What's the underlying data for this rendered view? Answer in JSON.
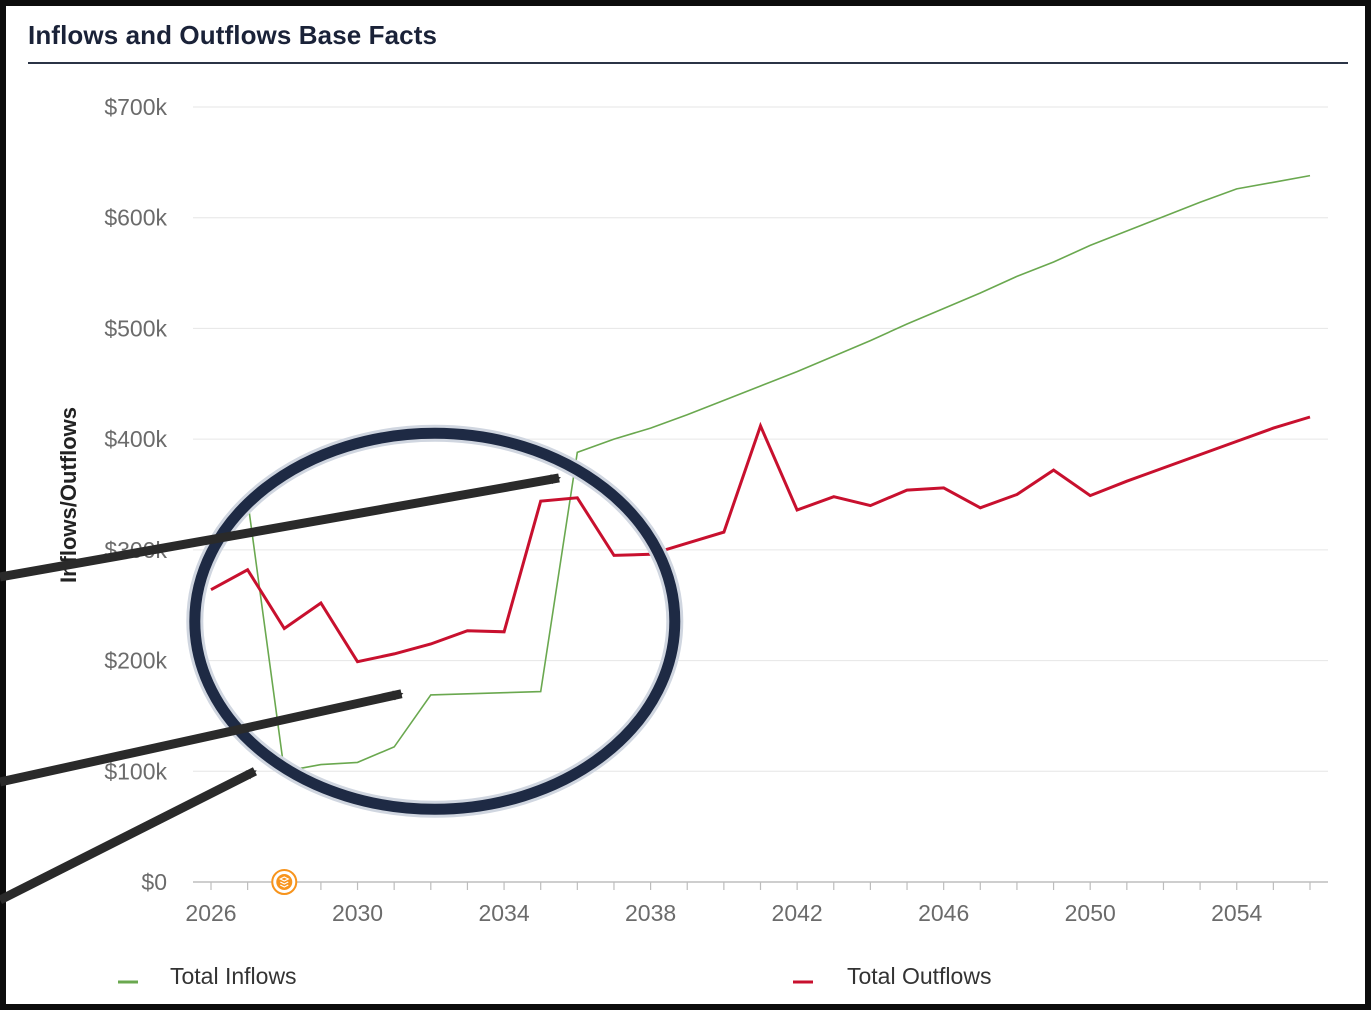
{
  "card": {
    "title": "Inflows and Outflows Base Facts"
  },
  "chart_data": {
    "type": "line",
    "ylabel": "Inflows/Outflows",
    "xlabel": "",
    "ylim": [
      0,
      700000
    ],
    "xlim": [
      2026,
      2056
    ],
    "y_ticks": [
      0,
      100000,
      200000,
      300000,
      400000,
      500000,
      600000,
      700000
    ],
    "y_tick_labels": [
      "$0",
      "$100k",
      "$200k",
      "$300k",
      "$400k",
      "$500k",
      "$600k",
      "$700k"
    ],
    "x_ticks": [
      2026,
      2030,
      2034,
      2038,
      2042,
      2046,
      2050,
      2054
    ],
    "x_tick_labels": [
      "2026",
      "2030",
      "2034",
      "2038",
      "2042",
      "2046",
      "2050",
      "2054"
    ],
    "grid": "horizontal",
    "legend_position": "bottom",
    "x": [
      2026,
      2027,
      2028,
      2029,
      2030,
      2031,
      2032,
      2033,
      2034,
      2035,
      2036,
      2037,
      2038,
      2039,
      2040,
      2041,
      2042,
      2043,
      2044,
      2045,
      2046,
      2047,
      2048,
      2049,
      2050,
      2051,
      2052,
      2053,
      2054,
      2055,
      2056
    ],
    "series": [
      {
        "name": "Total Inflows",
        "color": "#6aa84f",
        "values": [
          298000,
          345000,
          100000,
          106000,
          108000,
          122000,
          169000,
          170000,
          171000,
          172000,
          388000,
          400000,
          410000,
          422000,
          435000,
          448000,
          461000,
          475000,
          489000,
          504000,
          518000,
          532000,
          547000,
          560000,
          575000,
          588000,
          601000,
          614000,
          626000,
          632000,
          638000
        ]
      },
      {
        "name": "Total Outflows",
        "color": "#c8102e",
        "values": [
          264000,
          282000,
          229000,
          252000,
          199000,
          206000,
          215000,
          227000,
          226000,
          344000,
          347000,
          295000,
          296000,
          306000,
          316000,
          412000,
          336000,
          348000,
          340000,
          354000,
          356000,
          338000,
          350000,
          372000,
          349000,
          362000,
          374000,
          386000,
          398000,
          410000,
          420000
        ]
      }
    ],
    "annotations": {
      "event_marker": {
        "x": 2028,
        "icon": "stack-coins-icon",
        "color": "#f7941d"
      },
      "highlight_ellipse": {
        "x_range": [
          2026,
          2038
        ],
        "color": "#1e2a44"
      },
      "arrows": [
        {
          "from": "left-edge",
          "to_x": 2035.5,
          "to_y": 365000
        },
        {
          "from": "left-edge",
          "to_x": 2031.2,
          "to_y": 170000
        },
        {
          "from": "left-edge",
          "to_x": 2027.2,
          "to_y": 100000
        }
      ]
    }
  }
}
